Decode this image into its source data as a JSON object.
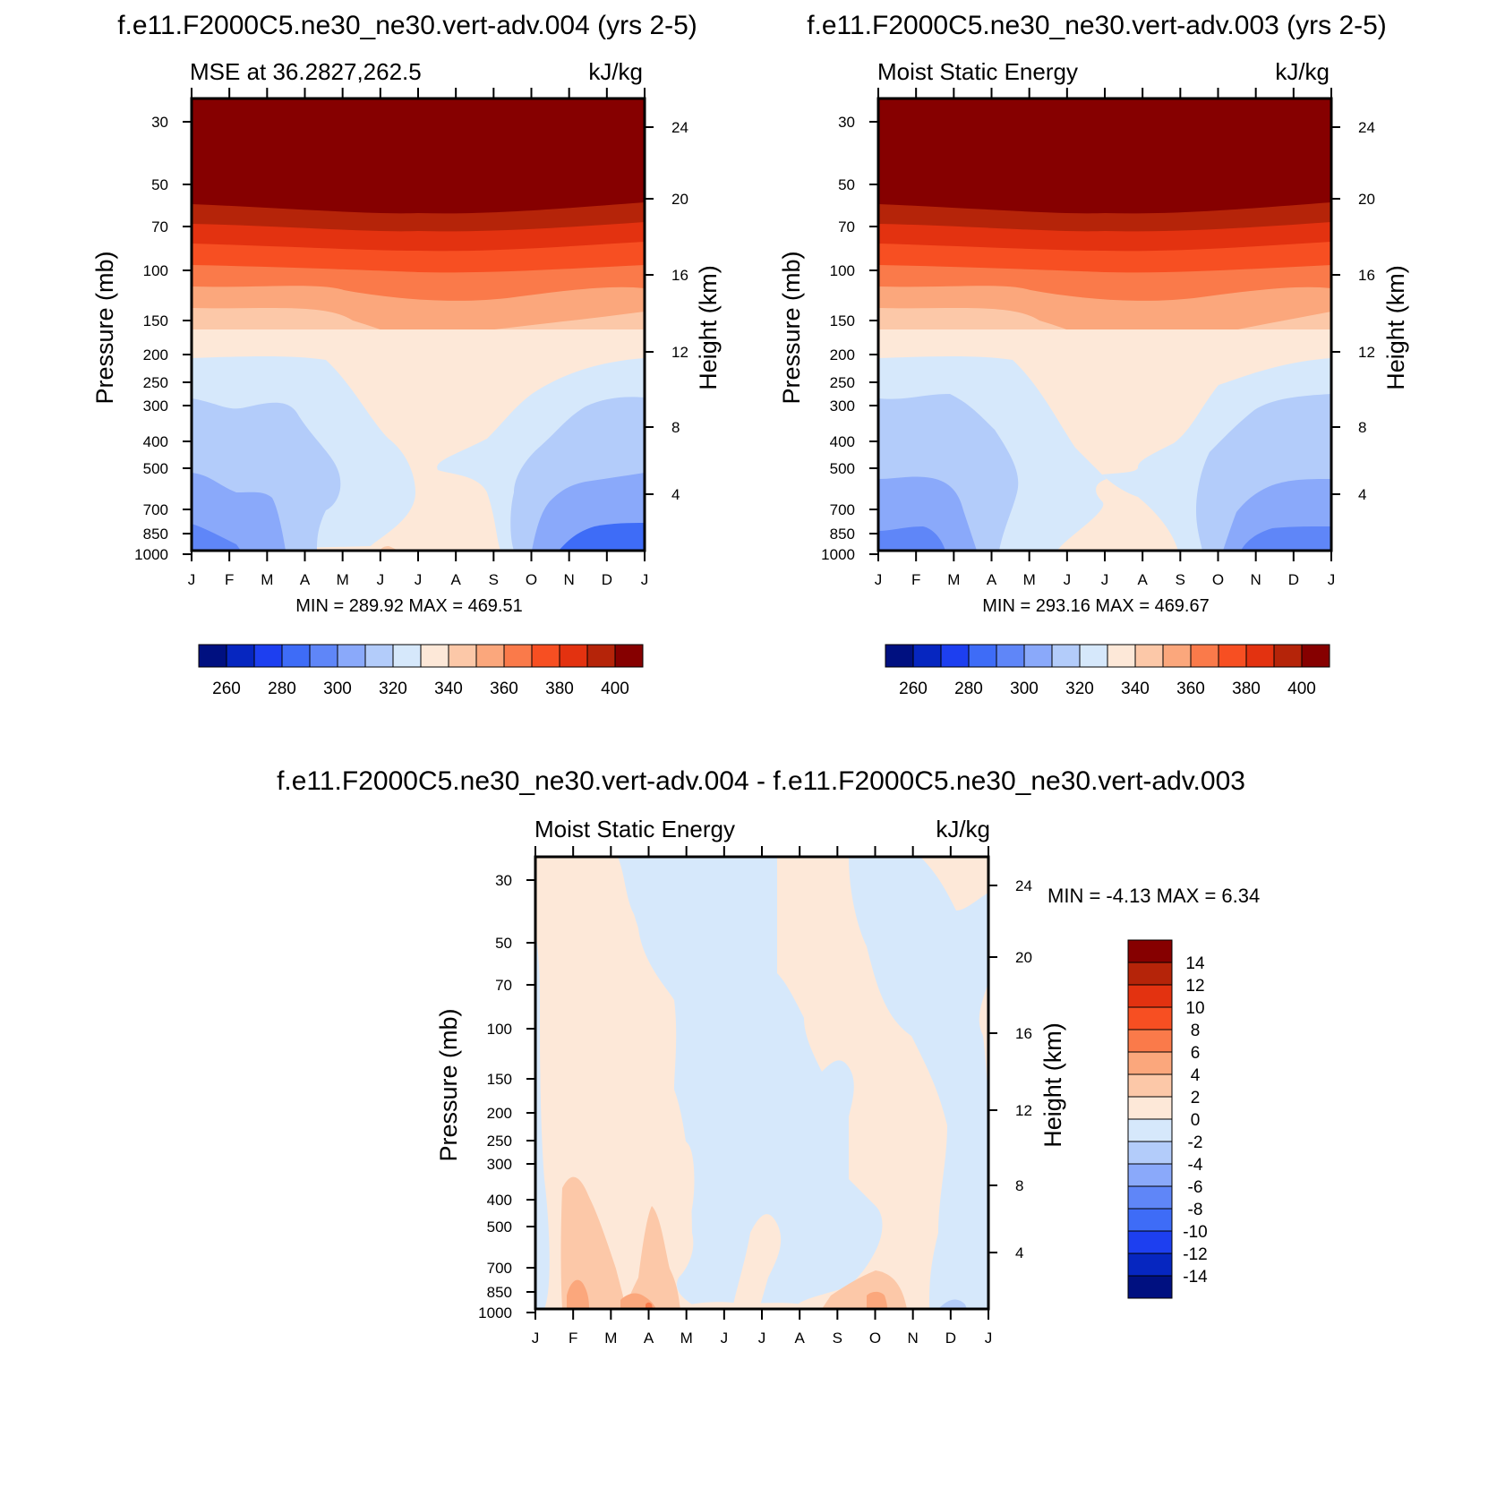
{
  "palette": {
    "warm": [
      "#fde8d8",
      "#fcc8a8",
      "#fba77c",
      "#fa7a4a",
      "#f74f22",
      "#e33210",
      "#b52409",
      "#860000"
    ],
    "cool": [
      "#d6e8fb",
      "#b3ccfa",
      "#8aa9fa",
      "#5f86f8",
      "#3e6cf7",
      "#1d3ff0",
      "#0626c0",
      "#001080"
    ]
  },
  "months": [
    "J",
    "F",
    "M",
    "A",
    "M",
    "J",
    "J",
    "A",
    "S",
    "O",
    "N",
    "D",
    "J"
  ],
  "pressure_ticks": [
    "30",
    "50",
    "70",
    "100",
    "150",
    "200",
    "250",
    "300",
    "400",
    "500",
    "700",
    "850",
    "1000"
  ],
  "height_ticks": [
    "24",
    "20",
    "16",
    "12",
    "8",
    "4"
  ],
  "chart_data": [
    {
      "type": "heatmap",
      "panel_title": "f.e11.F2000C5.ne30_ne30.vert-adv.004 (yrs 2-5)",
      "left_label": "MSE at 36.2827,262.5",
      "units": "kJ/kg",
      "xlabel": "",
      "ylabel": "Pressure (mb)",
      "ylabel_right": "Height (km)",
      "min_max": "MIN = 289.92 MAX = 469.51",
      "x": [
        "J",
        "F",
        "M",
        "A",
        "M",
        "J",
        "J",
        "A",
        "S",
        "O",
        "N",
        "D",
        "J"
      ],
      "colorbar_ticks": [
        "260",
        "280",
        "300",
        "320",
        "340",
        "360",
        "380",
        "400"
      ],
      "colorbar_levels": [
        250,
        260,
        270,
        280,
        290,
        300,
        310,
        320,
        330,
        340,
        350,
        360,
        370,
        380,
        390,
        400,
        410
      ]
    },
    {
      "type": "heatmap",
      "panel_title": "f.e11.F2000C5.ne30_ne30.vert-adv.003 (yrs 2-5)",
      "left_label": "Moist Static Energy",
      "units": "kJ/kg",
      "xlabel": "",
      "ylabel": "Pressure (mb)",
      "ylabel_right": "Height (km)",
      "min_max": "MIN = 293.16 MAX = 469.67",
      "x": [
        "J",
        "F",
        "M",
        "A",
        "M",
        "J",
        "J",
        "A",
        "S",
        "O",
        "N",
        "D",
        "J"
      ],
      "colorbar_ticks": [
        "260",
        "280",
        "300",
        "320",
        "340",
        "360",
        "380",
        "400"
      ],
      "colorbar_levels": [
        250,
        260,
        270,
        280,
        290,
        300,
        310,
        320,
        330,
        340,
        350,
        360,
        370,
        380,
        390,
        400,
        410
      ]
    },
    {
      "type": "heatmap",
      "panel_title": "f.e11.F2000C5.ne30_ne30.vert-adv.004 - f.e11.F2000C5.ne30_ne30.vert-adv.003",
      "left_label": "Moist Static Energy",
      "units": "kJ/kg",
      "xlabel": "",
      "ylabel": "Pressure (mb)",
      "ylabel_right": "Height (km)",
      "min_max": "MIN =  -4.13 MAX =   6.34",
      "x": [
        "J",
        "F",
        "M",
        "A",
        "M",
        "J",
        "J",
        "A",
        "S",
        "O",
        "N",
        "D",
        "J"
      ],
      "colorbar_ticks": [
        "14",
        "12",
        "10",
        "8",
        "6",
        "4",
        "2",
        "0",
        "-2",
        "-4",
        "-6",
        "-8",
        "-10",
        "-12",
        "-14"
      ],
      "colorbar_levels": [
        16,
        14,
        12,
        10,
        8,
        6,
        4,
        2,
        0,
        -2,
        -4,
        -6,
        -8,
        -10,
        -12,
        -14,
        -16
      ]
    }
  ]
}
